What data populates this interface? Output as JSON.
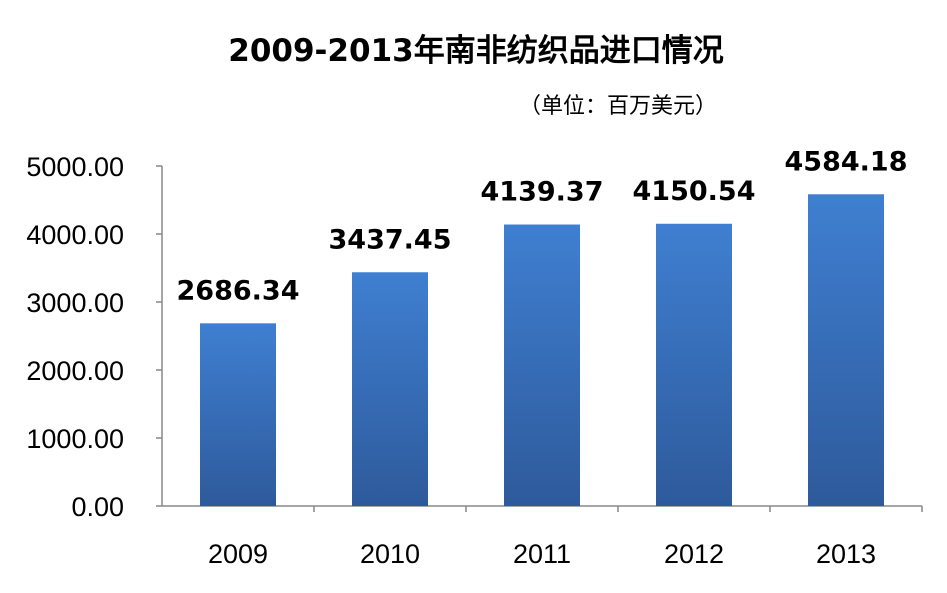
{
  "chart_data": {
    "type": "bar",
    "title": "2009-2013年南非纺织品进口情况",
    "subtitle": "（单位：百万美元）",
    "categories": [
      "2009",
      "2010",
      "2011",
      "2012",
      "2013"
    ],
    "values": [
      2686.34,
      3437.45,
      4139.37,
      4150.54,
      4584.18
    ],
    "data_labels": [
      "2686.34",
      "3437.45",
      "4139.37",
      "4150.54",
      "4584.18"
    ],
    "y_ticks": [
      "0.00",
      "1000.00",
      "2000.00",
      "3000.00",
      "4000.00",
      "5000.00"
    ],
    "ylim": [
      0,
      5000
    ],
    "grid": false,
    "legend": "none",
    "colors": {
      "bar_top": "#3f7fd1",
      "bar_bottom": "#2e5a9b",
      "axis": "#898989"
    }
  }
}
